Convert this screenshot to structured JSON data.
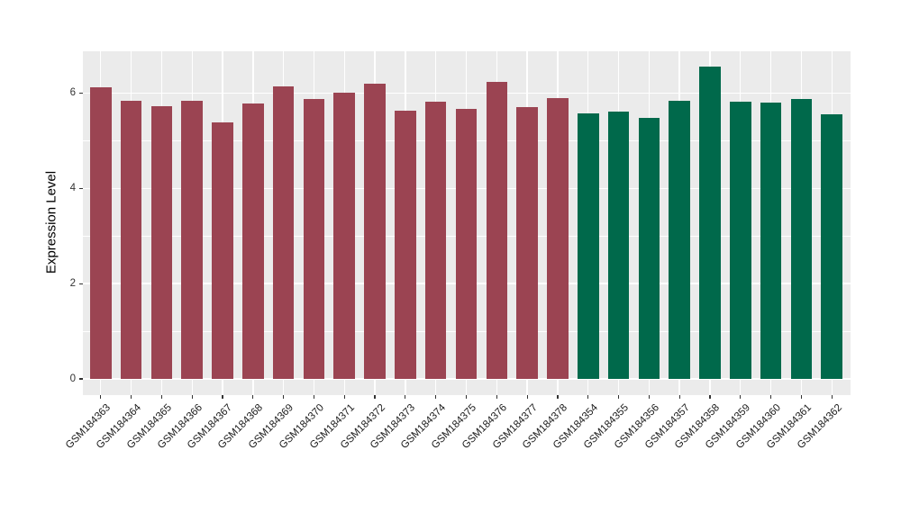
{
  "chart_data": {
    "type": "bar",
    "title": "",
    "xlabel": "",
    "ylabel": "Expression Level",
    "ylim": [
      0,
      6.88
    ],
    "grid": "on",
    "legend": "none",
    "yticks": [
      0,
      2,
      4,
      6
    ],
    "minor_yticks": [
      1,
      3,
      5
    ],
    "categories": [
      "GSM184363",
      "GSM184364",
      "GSM184365",
      "GSM184366",
      "GSM184367",
      "GSM184368",
      "GSM184369",
      "GSM184370",
      "GSM184371",
      "GSM184372",
      "GSM184373",
      "GSM184374",
      "GSM184375",
      "GSM184376",
      "GSM184377",
      "GSM184378",
      "GSM184354",
      "GSM184355",
      "GSM184356",
      "GSM184357",
      "GSM184358",
      "GSM184359",
      "GSM184360",
      "GSM184361",
      "GSM184362"
    ],
    "values": [
      6.11,
      5.83,
      5.72,
      5.83,
      5.39,
      5.77,
      6.14,
      5.87,
      6.01,
      6.2,
      5.63,
      5.81,
      5.66,
      6.23,
      5.7,
      5.9,
      5.57,
      5.61,
      5.48,
      5.84,
      6.56,
      5.81,
      5.79,
      5.87,
      5.55
    ],
    "groups": [
      0,
      0,
      0,
      0,
      0,
      0,
      0,
      0,
      0,
      0,
      0,
      0,
      0,
      0,
      0,
      0,
      1,
      1,
      1,
      1,
      1,
      1,
      1,
      1,
      1
    ],
    "group_colors": [
      "#9B4452",
      "#00694B"
    ],
    "colors": {
      "panel_background": "#EBEBEB",
      "gridline": "#FFFFFF",
      "tick_text": "#333333",
      "axis_title_text": "#000000"
    }
  }
}
